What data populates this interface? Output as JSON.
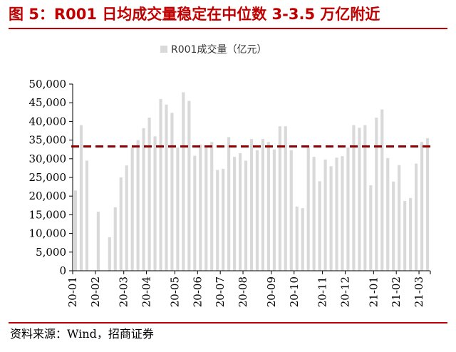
{
  "figure": {
    "title": "图 5：R001 日均成交量稳定在中位数 3-3.5 万亿附近",
    "source": "资料来源：Wind，招商证券"
  },
  "colors": {
    "title": "#c00000",
    "bar": "#d9d9d9",
    "median_line": "#8b0000"
  },
  "chart_data": {
    "type": "bar",
    "title": "",
    "xlabel": "",
    "ylabel": "",
    "legend": {
      "position": "top-center",
      "entries": [
        "R001成交量（亿元）"
      ]
    },
    "series": [
      {
        "name": "R001成交量（亿元）",
        "values": [
          21500,
          39000,
          29500,
          0,
          15800,
          0,
          9000,
          17000,
          25000,
          28200,
          33000,
          35000,
          38200,
          41000,
          36000,
          46000,
          44500,
          42300,
          33000,
          47800,
          45500,
          30800,
          33800,
          33000,
          34500,
          27000,
          27300,
          35800,
          30500,
          31500,
          29500,
          35300,
          32300,
          35300,
          34500,
          32500,
          38700,
          38700,
          32300,
          17200,
          16800,
          33000,
          30500,
          24000,
          29800,
          28000,
          30300,
          30700,
          33000,
          39000,
          38300,
          39000,
          22900,
          41000,
          43200,
          30200,
          23900,
          28300,
          18700,
          19500,
          28700,
          34500,
          35500
        ]
      }
    ],
    "reference_line": {
      "value": 33300,
      "style": "dashed"
    },
    "x_tick_labels": [
      "20-01",
      "20-02",
      "20-03",
      "20-04",
      "20-05",
      "20-06",
      "20-07",
      "20-08",
      "20-09",
      "20-10",
      "20-11",
      "20-12",
      "21-01",
      "21-02",
      "21-03"
    ],
    "x_tick_start_index": [
      0,
      4,
      9,
      13,
      18,
      22,
      26,
      30,
      35,
      39,
      44,
      48,
      53,
      57,
      61
    ],
    "y_tick_labels": [
      "0",
      "5,000",
      "10,000",
      "15,000",
      "20,000",
      "25,000",
      "30,000",
      "35,000",
      "40,000",
      "45,000",
      "50,000"
    ],
    "ylim": [
      0,
      50000
    ],
    "grid": false
  }
}
